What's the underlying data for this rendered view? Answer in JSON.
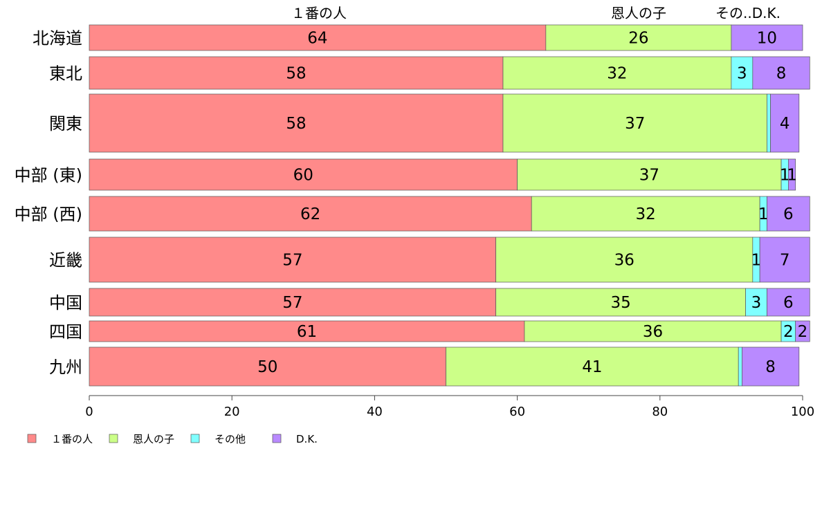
{
  "chart_data": {
    "type": "bar",
    "orientation": "horizontal",
    "stacked": true,
    "categories": [
      "北海道",
      "東北",
      "関東",
      "中部 (東)",
      "中部 (西)",
      "近畿",
      "中国",
      "四国",
      "九州"
    ],
    "series": [
      {
        "name": "１番の人",
        "color": "#ff8a8a",
        "values": [
          64,
          58,
          58,
          60,
          62,
          57,
          57,
          61,
          50
        ]
      },
      {
        "name": "恩人の子",
        "color": "#ccff88",
        "values": [
          26,
          32,
          37,
          37,
          32,
          36,
          35,
          36,
          41
        ]
      },
      {
        "name": "その他",
        "color": "#80ffff",
        "values": [
          0,
          3,
          0.5,
          1,
          1,
          1,
          3,
          2,
          0.5
        ]
      },
      {
        "name": "D.K.",
        "color": "#b98aff",
        "values": [
          10,
          8,
          4,
          1,
          6,
          7,
          6,
          2,
          8
        ]
      }
    ],
    "data_labels": [
      [
        "64",
        "26",
        "",
        "10"
      ],
      [
        "58",
        "32",
        "3",
        "8"
      ],
      [
        "58",
        "37",
        "",
        "4"
      ],
      [
        "60",
        "37",
        "1",
        "1"
      ],
      [
        "62",
        "32",
        "1",
        "6"
      ],
      [
        "57",
        "36",
        "1",
        "7"
      ],
      [
        "57",
        "35",
        "3",
        "6"
      ],
      [
        "61",
        "36",
        "2",
        "2"
      ],
      [
        "50",
        "41",
        "",
        "8"
      ]
    ],
    "column_headers": [
      "１番の人",
      "恩人の子",
      "その..D.K."
    ],
    "x_ticks": [
      "0",
      "20",
      "40",
      "60",
      "80",
      "100"
    ],
    "xlim": [
      0,
      100
    ],
    "legend": [
      "１番の人",
      "恩人の子",
      "その他",
      "D.K."
    ],
    "legend_position": "bottom-left",
    "grid": false
  }
}
